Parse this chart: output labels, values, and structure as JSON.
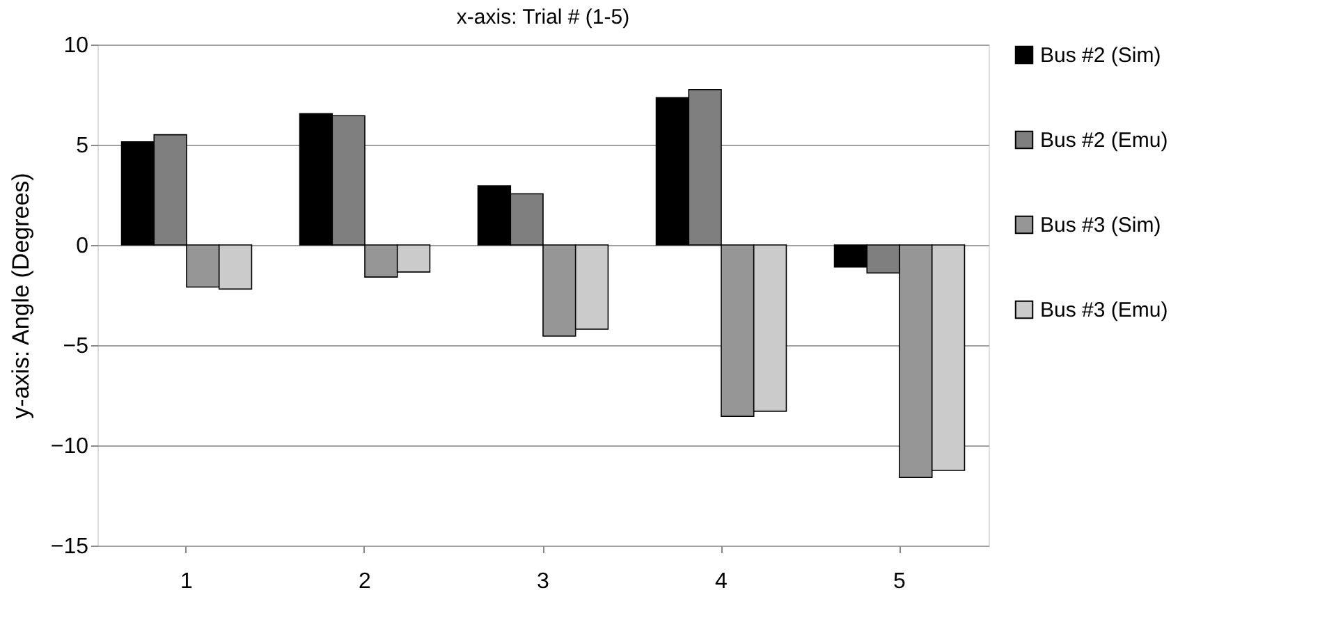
{
  "chart_data": {
    "type": "bar",
    "title": "x-axis: Trial # (1-5)",
    "ylabel": "y-axis: Angle (Degrees)",
    "categories": [
      "1",
      "2",
      "3",
      "4",
      "5"
    ],
    "series": [
      {
        "name": "Bus #2 (Sim)",
        "color": "#000000",
        "values": [
          5.15,
          6.55,
          2.95,
          7.35,
          -1.1
        ]
      },
      {
        "name": "Bus #2 (Emu)",
        "color": "#7f7f7f",
        "values": [
          5.5,
          6.45,
          2.55,
          7.75,
          -1.4
        ]
      },
      {
        "name": "Bus #3 (Sim)",
        "color": "#969696",
        "values": [
          -2.1,
          -1.6,
          -4.55,
          -8.55,
          -11.6
        ]
      },
      {
        "name": "Bus #3 (Emu)",
        "color": "#cbcbcb",
        "values": [
          -2.2,
          -1.35,
          -4.2,
          -8.3,
          -11.25
        ]
      }
    ],
    "ylim": [
      -15,
      10
    ],
    "yticks": [
      -15,
      -10,
      -5,
      0,
      5,
      10
    ],
    "grid": "y",
    "legend": "right"
  }
}
